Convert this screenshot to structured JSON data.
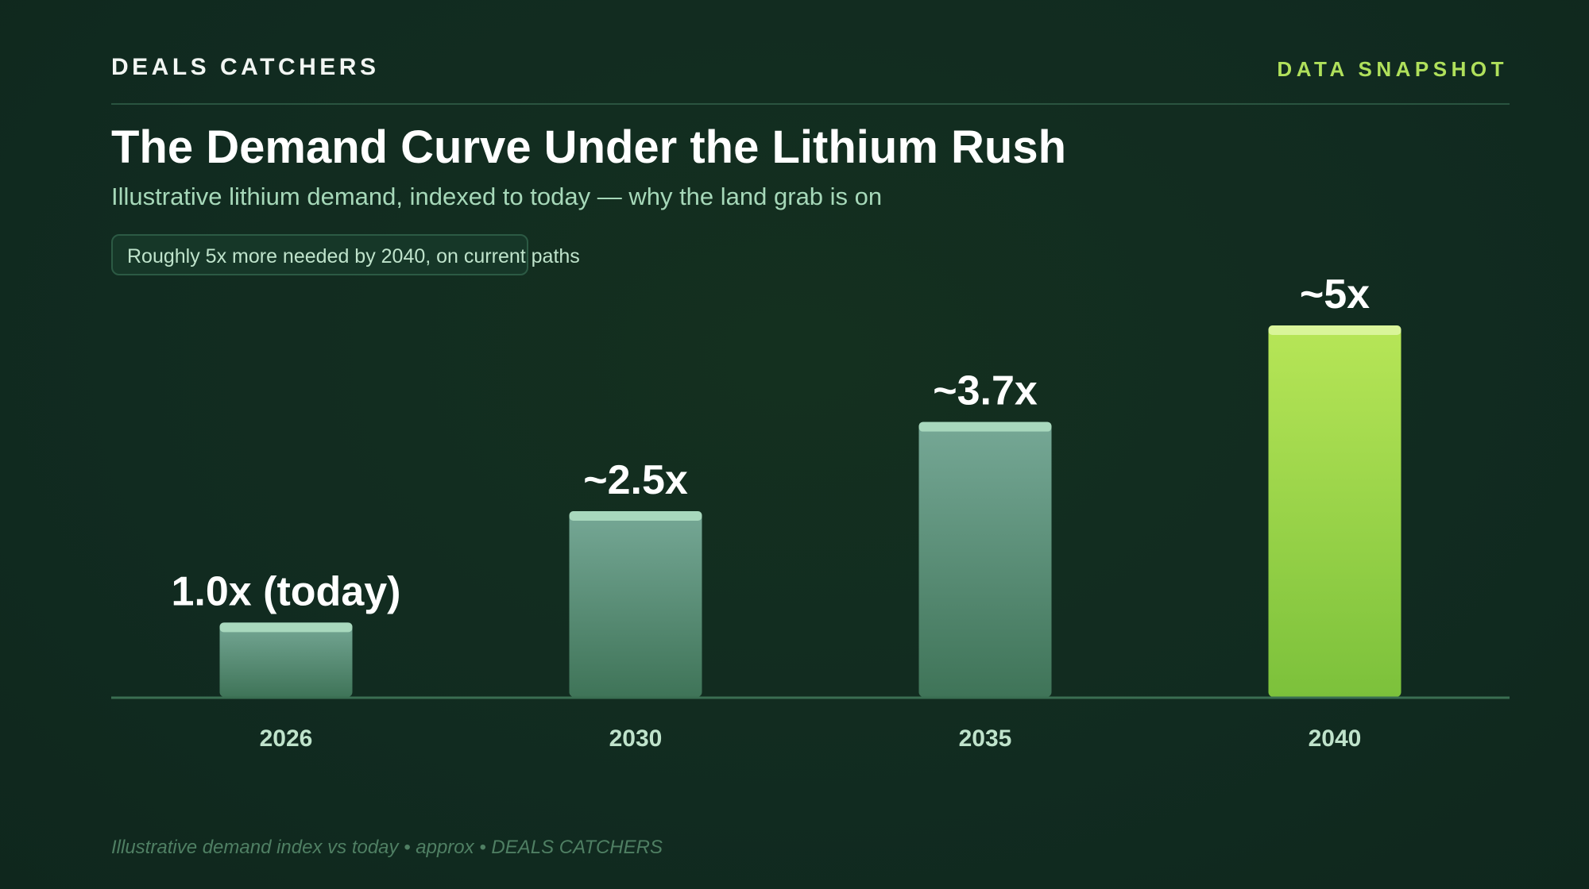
{
  "header": {
    "brand": "DEALS CATCHERS",
    "tag": "DATA SNAPSHOT"
  },
  "title": "The Demand Curve Under the Lithium Rush",
  "subtitle": "Illustrative lithium demand, indexed to today — why the land grab is on",
  "note": "Roughly 5x more needed by 2040, on current paths",
  "footer": "Illustrative demand index vs today • approx • DEALS CATCHERS",
  "colors": {
    "bar_muted_top": "#76a896",
    "bar_muted_bottom": "#3f7458",
    "bar_muted_cap": "#a8d8bd",
    "bar_accent_top": "#b7e657",
    "bar_accent_bottom": "#7cc13b",
    "bar_accent_cap": "#d9f59a",
    "baseline": "#3a6e52"
  },
  "chart_data": {
    "type": "bar",
    "title": "The Demand Curve Under the Lithium Rush",
    "xlabel": "",
    "ylabel": "",
    "categories": [
      "2026",
      "2030",
      "2035",
      "2040"
    ],
    "values": [
      1.0,
      2.5,
      3.7,
      5.0
    ],
    "data_labels": [
      "1.0x (today)",
      "~2.5x",
      "~3.7x",
      "~5x"
    ],
    "highlight_index": 3,
    "ylim": [
      0,
      5.0
    ],
    "grid": false,
    "legend": "none"
  }
}
